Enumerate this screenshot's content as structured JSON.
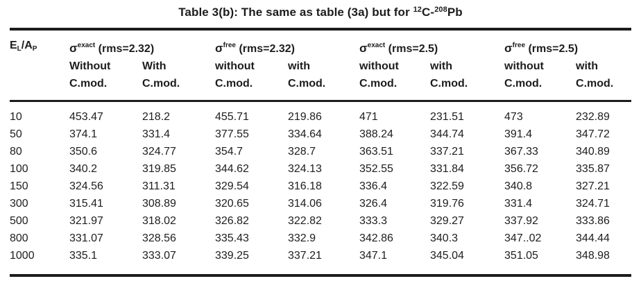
{
  "page": {
    "background": "#ffffff",
    "text_color": "#1d1d1d",
    "rule_color": "#1c1c1c"
  },
  "title": {
    "text_before_isotopes": "Table 3(b): The same as table (3a) but for ",
    "isotope1_mass": "12",
    "isotope1_symbol": "C",
    "separator": "-",
    "isotope2_mass": "208",
    "isotope2_symbol": "Pb"
  },
  "table": {
    "corner_header": {
      "base1": "E",
      "sub1": "L",
      "base2": "/A",
      "sub2": "P"
    },
    "groups": [
      {
        "sigma": "σ",
        "sup": "exact",
        "rms": " (rms=2.32)",
        "sub1": "Without",
        "sub2": "With"
      },
      {
        "sigma": "σ",
        "sup": "free",
        "rms": " (rms=2.32)",
        "sub1": "without",
        "sub2": "with"
      },
      {
        "sigma": "σ",
        "sup": "exact",
        "rms": " (rms=2.5)",
        "sub1": "without",
        "sub2": "with"
      },
      {
        "sigma": "σ",
        "sup": "free",
        "rms": " (rms=2.5)",
        "sub1": "without",
        "sub2": "with"
      }
    ],
    "cmod_label": "C.mod.",
    "rows": [
      {
        "energy": "10",
        "values": [
          "453.47",
          "218.2",
          "455.71",
          "219.86",
          "471",
          "231.51",
          "473",
          "232.89"
        ]
      },
      {
        "energy": "50",
        "values": [
          "374.1",
          "331.4",
          "377.55",
          "334.64",
          "388.24",
          "344.74",
          "391.4",
          "347.72"
        ]
      },
      {
        "energy": "80",
        "values": [
          "350.6",
          "324.77",
          "354.7",
          "328.7",
          "363.51",
          "337.21",
          "367.33",
          "340.89"
        ]
      },
      {
        "energy": "100",
        "values": [
          "340.2",
          "319.85",
          "344.62",
          "324.13",
          "352.55",
          "331.84",
          "356.72",
          "335.87"
        ]
      },
      {
        "energy": "150",
        "values": [
          "324.56",
          "311.31",
          "329.54",
          "316.18",
          "336.4",
          "322.59",
          "340.8",
          "327.21"
        ]
      },
      {
        "energy": "300",
        "values": [
          "315.41",
          "308.89",
          "320.65",
          "314.06",
          "326.4",
          "319.76",
          "331.4",
          "324.71"
        ]
      },
      {
        "energy": "500",
        "values": [
          "321.97",
          "318.02",
          "326.82",
          "322.82",
          "333.3",
          "329.27",
          "337.92",
          "333.86"
        ]
      },
      {
        "energy": "800",
        "values": [
          "331.07",
          "328.56",
          "335.43",
          "332.9",
          "342.86",
          "340.3",
          "347..02",
          "344.44"
        ]
      },
      {
        "energy": "1000",
        "values": [
          "335.1",
          "333.07",
          "339.25",
          "337.21",
          "347.1",
          "345.04",
          "351.05",
          "348.98"
        ]
      }
    ]
  }
}
